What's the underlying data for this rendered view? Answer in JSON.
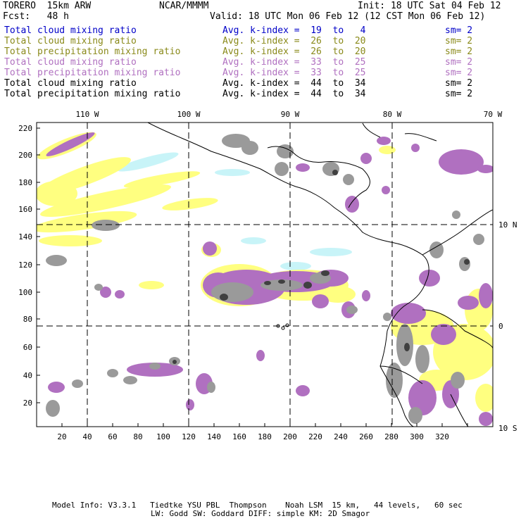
{
  "header": {
    "model": "TORERO  15km ARW",
    "org": "NCAR/MMMM",
    "init": "Init: 18 UTC Sat 04 Feb 12",
    "fcst": "Fcst:   48 h",
    "valid": "Valid: 18 UTC Mon 06 Feb 12 (12 CST Mon 06 Feb 12)"
  },
  "legend": [
    {
      "field": "Total cloud mixing ratio",
      "index": "Avg. k-index =  19  to   4",
      "sm": "sm= 2",
      "color": "#0000c8"
    },
    {
      "field": "Total cloud mixing ratio",
      "index": "Avg. k-index =  26  to  20",
      "sm": "sm= 2",
      "color": "#8a8a1a"
    },
    {
      "field": "Total precipitation mixing ratio",
      "index": "Avg. k-index =  26  to  20",
      "sm": "sm= 2",
      "color": "#8a8a1a"
    },
    {
      "field": "Total cloud mixing ratio",
      "index": "Avg. k-index =  33  to  25",
      "sm": "sm= 2",
      "color": "#b070c0"
    },
    {
      "field": "Total precipitation mixing ratio",
      "index": "Avg. k-index =  33  to  25",
      "sm": "sm= 2",
      "color": "#b070c0"
    },
    {
      "field": "Total cloud mixing ratio",
      "index": "Avg. k-index =  44  to  34",
      "sm": "sm= 2",
      "color": "#000000"
    },
    {
      "field": "Total precipitation mixing ratio",
      "index": "Avg. k-index =  44  to  34",
      "sm": "sm= 2",
      "color": "#000000"
    }
  ],
  "map": {
    "lon_labels": [
      "110 W",
      "100 W",
      "90 W",
      "80 W",
      "70 W"
    ],
    "lat_labels": [
      "10 N",
      "0",
      "10 S"
    ],
    "x_ticks": [
      "20",
      "40",
      "60",
      "80",
      "100",
      "120",
      "140",
      "160",
      "180",
      "200",
      "220",
      "240",
      "260",
      "280",
      "300",
      "320"
    ],
    "y_ticks": [
      "220",
      "200",
      "180",
      "160",
      "140",
      "120",
      "100",
      "80",
      "60",
      "40",
      "20"
    ],
    "colors": {
      "cyan": "#c8f4f8",
      "yellow": "#ffff80",
      "violet": "#b070c0",
      "gray": "#9a9a9a",
      "dark": "#404040"
    }
  },
  "footer": {
    "line1": "Model Info: V3.3.1   Tiedtke YSU PBL  Thompson    Noah LSM  15 km,   44 levels,   60 sec",
    "line2": "LW: Godd SW: Goddard DIFF: simple KM: 2D Smagor"
  }
}
